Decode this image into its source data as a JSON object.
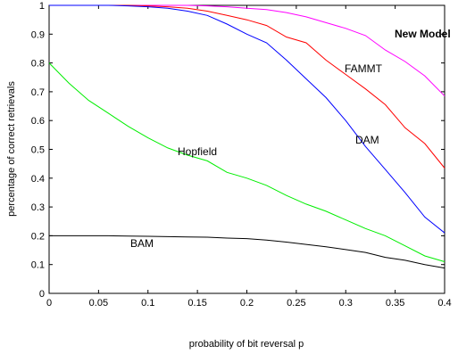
{
  "chart_data": {
    "type": "line",
    "title": "",
    "xlabel": "probability of bit reversal p",
    "ylabel": "percentage of correct retrievals",
    "xlim": [
      0,
      0.4
    ],
    "ylim": [
      0,
      1
    ],
    "xticks": [
      0,
      0.05,
      0.1,
      0.15,
      0.2,
      0.25,
      0.3,
      0.35,
      0.4
    ],
    "xtick_labels": [
      "0",
      "0.05",
      "0.1",
      "0.15",
      "0.2",
      "0.25",
      "0.3",
      "0.35",
      "0.4"
    ],
    "yticks": [
      0,
      0.1,
      0.2,
      0.3,
      0.4,
      0.5,
      0.6,
      0.7,
      0.8,
      0.9,
      1
    ],
    "ytick_labels": [
      "0",
      "0.1",
      "0.2",
      "0.3",
      "0.4",
      "0.5",
      "0.6",
      "0.7",
      "0.8",
      "0.9",
      "1"
    ],
    "grid": false,
    "legend": "none",
    "series": [
      {
        "name": "New Model",
        "color": "#ff00ff",
        "x": [
          0,
          0.02,
          0.04,
          0.06,
          0.08,
          0.1,
          0.12,
          0.14,
          0.16,
          0.18,
          0.2,
          0.22,
          0.24,
          0.26,
          0.28,
          0.3,
          0.32,
          0.34,
          0.36,
          0.38,
          0.4
        ],
        "y": [
          1,
          1,
          1,
          1,
          1,
          1,
          1,
          1,
          0.998,
          0.995,
          0.99,
          0.985,
          0.975,
          0.96,
          0.94,
          0.92,
          0.895,
          0.845,
          0.805,
          0.755,
          0.685
        ]
      },
      {
        "name": "FAMMT",
        "color": "#ff0000",
        "x": [
          0,
          0.02,
          0.04,
          0.06,
          0.08,
          0.1,
          0.12,
          0.14,
          0.16,
          0.18,
          0.2,
          0.22,
          0.24,
          0.26,
          0.28,
          0.3,
          0.32,
          0.34,
          0.36,
          0.38,
          0.4
        ],
        "y": [
          1,
          1,
          1,
          1,
          1,
          0.998,
          0.995,
          0.99,
          0.98,
          0.965,
          0.95,
          0.93,
          0.89,
          0.87,
          0.81,
          0.76,
          0.71,
          0.655,
          0.575,
          0.52,
          0.435
        ]
      },
      {
        "name": "DAM",
        "color": "#0000ff",
        "x": [
          0,
          0.02,
          0.04,
          0.06,
          0.08,
          0.1,
          0.12,
          0.14,
          0.16,
          0.18,
          0.2,
          0.22,
          0.24,
          0.26,
          0.28,
          0.3,
          0.32,
          0.34,
          0.36,
          0.38,
          0.4
        ],
        "y": [
          1,
          1,
          1,
          1,
          0.998,
          0.995,
          0.99,
          0.98,
          0.965,
          0.935,
          0.9,
          0.87,
          0.81,
          0.745,
          0.68,
          0.6,
          0.51,
          0.43,
          0.35,
          0.265,
          0.21
        ]
      },
      {
        "name": "Hopfield",
        "color": "#00ee00",
        "x": [
          0,
          0.02,
          0.04,
          0.06,
          0.08,
          0.1,
          0.12,
          0.14,
          0.16,
          0.18,
          0.2,
          0.22,
          0.24,
          0.26,
          0.28,
          0.3,
          0.32,
          0.34,
          0.36,
          0.38,
          0.4
        ],
        "y": [
          0.8,
          0.73,
          0.67,
          0.625,
          0.58,
          0.54,
          0.505,
          0.48,
          0.46,
          0.42,
          0.4,
          0.375,
          0.34,
          0.31,
          0.285,
          0.255,
          0.225,
          0.2,
          0.165,
          0.13,
          0.11
        ]
      },
      {
        "name": "BAM",
        "color": "#000000",
        "x": [
          0,
          0.02,
          0.04,
          0.06,
          0.08,
          0.1,
          0.12,
          0.14,
          0.16,
          0.18,
          0.2,
          0.22,
          0.24,
          0.26,
          0.28,
          0.3,
          0.32,
          0.34,
          0.36,
          0.38,
          0.4
        ],
        "y": [
          0.2,
          0.2,
          0.2,
          0.2,
          0.199,
          0.198,
          0.197,
          0.196,
          0.195,
          0.192,
          0.19,
          0.185,
          0.178,
          0.17,
          0.162,
          0.152,
          0.142,
          0.125,
          0.115,
          0.1,
          0.088
        ]
      }
    ]
  }
}
